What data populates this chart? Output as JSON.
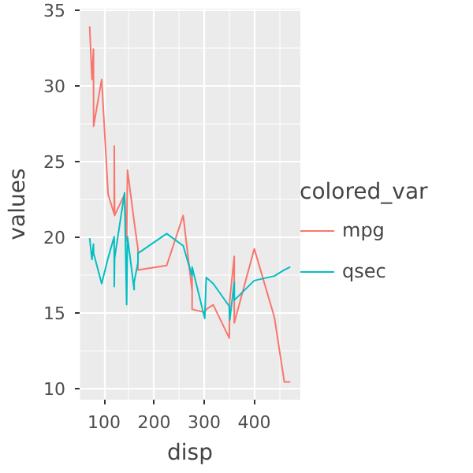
{
  "chart_data": {
    "type": "line",
    "xlabel": "disp",
    "ylabel": "values",
    "legend_title": "colored_var",
    "legend": "right",
    "grid": true,
    "x": [
      71.1,
      75.7,
      78.7,
      79.0,
      95.1,
      108.0,
      120.1,
      120.3,
      121.0,
      140.8,
      145.0,
      146.7,
      160.0,
      160.0,
      167.6,
      167.6,
      225.0,
      258.0,
      275.8,
      275.8,
      275.8,
      301.0,
      304.0,
      318.0,
      350.0,
      351.0,
      360.0,
      360.0,
      400.0,
      440.0,
      460.0,
      472.0
    ],
    "series": [
      {
        "name": "mpg",
        "color": "#f8766d",
        "values": [
          33.9,
          30.4,
          32.4,
          27.3,
          30.4,
          22.8,
          21.5,
          26.0,
          21.4,
          22.8,
          19.7,
          24.4,
          21.0,
          21.0,
          19.2,
          17.8,
          18.1,
          21.4,
          16.4,
          17.3,
          15.2,
          15.0,
          15.2,
          15.5,
          13.3,
          15.8,
          18.7,
          14.3,
          19.2,
          14.7,
          10.4,
          10.4
        ]
      },
      {
        "name": "qsec",
        "color": "#00bfc4",
        "values": [
          19.9,
          18.5,
          19.5,
          18.9,
          16.9,
          18.6,
          20.0,
          16.7,
          18.6,
          22.9,
          15.5,
          20.0,
          16.5,
          17.0,
          18.3,
          18.9,
          20.2,
          19.4,
          17.4,
          17.6,
          18.0,
          14.6,
          17.3,
          16.9,
          15.4,
          14.5,
          17.0,
          15.8,
          17.1,
          17.4,
          17.8,
          18.0
        ]
      }
    ],
    "xlim": [
      51.06,
      492.04
    ],
    "ylim": [
      9.225,
      35.075
    ],
    "xticks": [
      100,
      200,
      300,
      400
    ],
    "yticks": [
      10,
      15,
      20,
      25,
      30,
      35
    ]
  }
}
